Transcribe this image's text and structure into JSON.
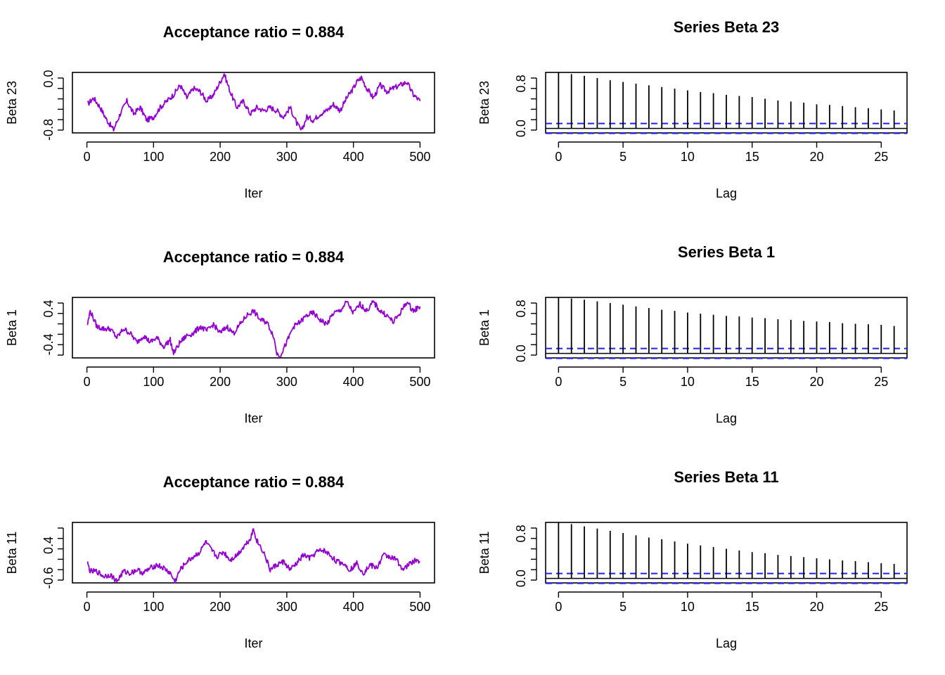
{
  "chart_data": [
    {
      "type": "line",
      "title": "Acceptance ratio = 0.884",
      "xlabel": "Iter",
      "ylabel": "Beta 23",
      "xlim": [
        0,
        500
      ],
      "ylim": [
        -0.85,
        0.1
      ],
      "xticks": [
        "0",
        "100",
        "200",
        "300",
        "400",
        "500"
      ],
      "yticks": [
        {
          "v": -0.8,
          "label": "-0.8"
        },
        {
          "v": 0.0,
          "label": "0.0"
        }
      ],
      "color": "#9400d3",
      "x": [
        1,
        10,
        20,
        30,
        40,
        50,
        60,
        70,
        80,
        90,
        100,
        110,
        120,
        130,
        140,
        150,
        160,
        170,
        180,
        190,
        200,
        206,
        215,
        225,
        235,
        245,
        255,
        265,
        275,
        285,
        295,
        305,
        315,
        322,
        330,
        340,
        350,
        360,
        370,
        380,
        390,
        400,
        405,
        412,
        420,
        430,
        440,
        450,
        460,
        470,
        480,
        490,
        500
      ],
      "values": [
        -0.4,
        -0.3,
        -0.45,
        -0.65,
        -0.8,
        -0.55,
        -0.35,
        -0.55,
        -0.45,
        -0.65,
        -0.6,
        -0.45,
        -0.35,
        -0.25,
        -0.1,
        -0.3,
        -0.15,
        -0.2,
        -0.35,
        -0.25,
        -0.05,
        0.08,
        -0.2,
        -0.45,
        -0.35,
        -0.55,
        -0.45,
        -0.5,
        -0.45,
        -0.5,
        -0.6,
        -0.45,
        -0.7,
        -0.82,
        -0.6,
        -0.65,
        -0.55,
        -0.5,
        -0.4,
        -0.5,
        -0.3,
        -0.15,
        -0.05,
        0.02,
        -0.15,
        -0.3,
        -0.1,
        -0.2,
        -0.15,
        -0.1,
        -0.05,
        -0.25,
        -0.35
      ]
    },
    {
      "type": "bar",
      "title": "Series Beta 23",
      "xlabel": "Lag",
      "ylabel": "Beta 23",
      "xlim": [
        -1,
        27
      ],
      "ylim": [
        -0.08,
        1.0
      ],
      "xticks": [
        0,
        5,
        10,
        15,
        20,
        25
      ],
      "yticks": [
        {
          "v": 0.0,
          "label": "0.0"
        },
        {
          "v": 0.8,
          "label": "0.8"
        }
      ],
      "lags": [
        0,
        1,
        2,
        3,
        4,
        5,
        6,
        7,
        8,
        9,
        10,
        11,
        12,
        13,
        14,
        15,
        16,
        17,
        18,
        19,
        20,
        21,
        22,
        23,
        24,
        25,
        26
      ],
      "values": [
        1.0,
        0.97,
        0.94,
        0.9,
        0.86,
        0.83,
        0.8,
        0.77,
        0.74,
        0.71,
        0.68,
        0.65,
        0.63,
        0.6,
        0.58,
        0.56,
        0.53,
        0.5,
        0.48,
        0.46,
        0.43,
        0.42,
        0.4,
        0.38,
        0.36,
        0.34,
        0.32
      ],
      "conf": 0.088,
      "conf_color": "#1f1fff"
    },
    {
      "type": "line",
      "title": "Acceptance ratio = 0.884",
      "xlabel": "Iter",
      "ylabel": "Beta 1",
      "xlim": [
        0,
        500
      ],
      "ylim": [
        -0.7,
        0.65
      ],
      "xticks": [
        "0",
        "100",
        "200",
        "300",
        "400",
        "500"
      ],
      "yticks": [
        {
          "v": -0.4,
          "label": "-0.4"
        },
        {
          "v": 0.4,
          "label": "0.4"
        }
      ],
      "color": "#9400d3",
      "x": [
        1,
        5,
        15,
        25,
        35,
        45,
        55,
        65,
        75,
        85,
        95,
        105,
        115,
        125,
        130,
        140,
        150,
        160,
        170,
        180,
        190,
        200,
        210,
        220,
        230,
        240,
        250,
        260,
        270,
        280,
        285,
        290,
        300,
        310,
        320,
        330,
        340,
        350,
        360,
        370,
        380,
        390,
        400,
        410,
        420,
        430,
        440,
        450,
        460,
        470,
        480,
        490,
        500
      ],
      "values": [
        0.05,
        0.35,
        0.0,
        -0.05,
        -0.05,
        -0.25,
        -0.05,
        -0.15,
        -0.35,
        -0.2,
        -0.35,
        -0.25,
        -0.45,
        -0.3,
        -0.6,
        -0.35,
        -0.2,
        -0.15,
        0.0,
        -0.1,
        0.05,
        -0.15,
        0.0,
        -0.15,
        0.05,
        0.25,
        0.35,
        0.15,
        0.1,
        -0.2,
        -0.6,
        -0.65,
        -0.35,
        0.0,
        0.1,
        0.25,
        0.3,
        0.15,
        0.05,
        0.3,
        0.35,
        0.55,
        0.3,
        0.5,
        0.35,
        0.55,
        0.35,
        0.25,
        0.1,
        0.3,
        0.55,
        0.35,
        0.45
      ]
    },
    {
      "type": "bar",
      "title": "Series Beta 1",
      "xlabel": "Lag",
      "ylabel": "Beta 1",
      "xlim": [
        -1,
        27
      ],
      "ylim": [
        -0.08,
        1.0
      ],
      "xticks": [
        0,
        5,
        10,
        15,
        20,
        25
      ],
      "yticks": [
        {
          "v": 0.0,
          "label": "0.0"
        },
        {
          "v": 0.8,
          "label": "0.8"
        }
      ],
      "lags": [
        0,
        1,
        2,
        3,
        4,
        5,
        6,
        7,
        8,
        9,
        10,
        11,
        12,
        13,
        14,
        15,
        16,
        17,
        18,
        19,
        20,
        21,
        22,
        23,
        24,
        25,
        26
      ],
      "values": [
        1.0,
        0.98,
        0.96,
        0.93,
        0.9,
        0.87,
        0.84,
        0.81,
        0.78,
        0.76,
        0.73,
        0.71,
        0.69,
        0.67,
        0.66,
        0.64,
        0.63,
        0.61,
        0.6,
        0.58,
        0.57,
        0.56,
        0.54,
        0.53,
        0.52,
        0.51,
        0.49
      ],
      "conf": 0.088,
      "conf_color": "#1f1fff"
    },
    {
      "type": "line",
      "title": "Acceptance ratio = 0.884",
      "xlabel": "Iter",
      "ylabel": "Beta 11",
      "xlim": [
        0,
        500
      ],
      "ylim": [
        -0.75,
        1.1
      ],
      "xticks": [
        "0",
        "100",
        "200",
        "300",
        "400",
        "500"
      ],
      "yticks": [
        {
          "v": -0.6,
          "label": "-0.6"
        },
        {
          "v": 0.4,
          "label": "0.4"
        }
      ],
      "color": "#9400d3",
      "x": [
        1,
        5,
        15,
        25,
        35,
        45,
        55,
        65,
        75,
        85,
        95,
        105,
        115,
        125,
        132,
        140,
        150,
        160,
        170,
        178,
        185,
        195,
        205,
        215,
        225,
        235,
        245,
        250,
        255,
        265,
        275,
        285,
        295,
        305,
        315,
        325,
        335,
        345,
        355,
        365,
        375,
        385,
        395,
        405,
        415,
        425,
        435,
        445,
        455,
        465,
        475,
        485,
        495,
        500
      ],
      "values": [
        -0.15,
        -0.4,
        -0.4,
        -0.55,
        -0.5,
        -0.7,
        -0.4,
        -0.45,
        -0.35,
        -0.45,
        -0.3,
        -0.2,
        -0.3,
        -0.45,
        -0.72,
        -0.35,
        -0.1,
        0.05,
        0.2,
        0.5,
        0.3,
        0.05,
        0.2,
        -0.05,
        0.1,
        0.35,
        0.6,
        0.9,
        0.55,
        0.2,
        -0.35,
        -0.2,
        -0.1,
        -0.35,
        -0.15,
        0.1,
        0.0,
        0.2,
        0.25,
        0.1,
        -0.1,
        -0.15,
        -0.35,
        -0.15,
        -0.45,
        -0.2,
        -0.3,
        0.1,
        0.05,
        -0.05,
        -0.35,
        -0.15,
        -0.05,
        -0.1
      ]
    },
    {
      "type": "bar",
      "title": "Series Beta 11",
      "xlabel": "Lag",
      "ylabel": "Beta 11",
      "xlim": [
        -1,
        27
      ],
      "ylim": [
        -0.08,
        1.0
      ],
      "xticks": [
        0,
        5,
        10,
        15,
        20,
        25
      ],
      "yticks": [
        {
          "v": 0.0,
          "label": "0.0"
        },
        {
          "v": 0.8,
          "label": "0.8"
        }
      ],
      "lags": [
        0,
        1,
        2,
        3,
        4,
        5,
        6,
        7,
        8,
        9,
        10,
        11,
        12,
        13,
        14,
        15,
        16,
        17,
        18,
        19,
        20,
        21,
        22,
        23,
        24,
        25,
        26
      ],
      "values": [
        1.0,
        0.97,
        0.93,
        0.89,
        0.85,
        0.81,
        0.77,
        0.73,
        0.7,
        0.66,
        0.62,
        0.59,
        0.56,
        0.53,
        0.5,
        0.47,
        0.45,
        0.42,
        0.4,
        0.38,
        0.36,
        0.34,
        0.32,
        0.31,
        0.29,
        0.27,
        0.26
      ],
      "conf": 0.088,
      "conf_color": "#1f1fff"
    }
  ]
}
